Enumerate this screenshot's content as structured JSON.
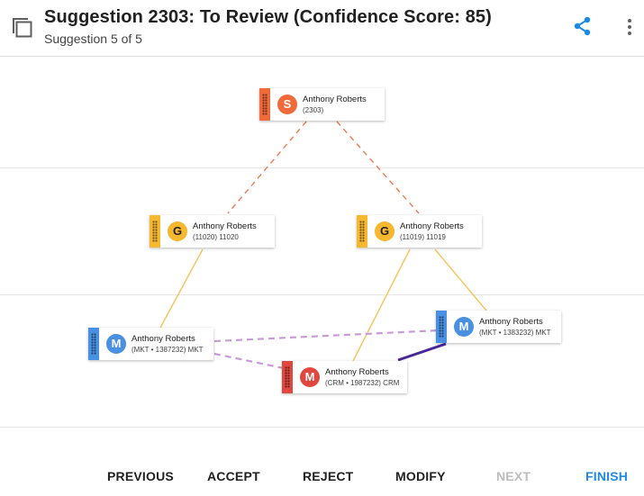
{
  "header": {
    "title": "Suggestion 2303: To Review (Confidence Score: 85)",
    "subtitle": "Suggestion 5 of 5",
    "icons": {
      "left": "copy-icon",
      "share": "share-icon",
      "more": "more-vertical-icon"
    }
  },
  "colors": {
    "orange": "#f06a3a",
    "yellow": "#f5b82e",
    "blue": "#4a90e2",
    "red": "#e0483f",
    "dashed_orange": "#f07a4f",
    "yellow_line": "#f5c45a",
    "lavender": "#c79bd6",
    "purple": "#4a2799",
    "accent": "#1e88e5"
  },
  "nodes": {
    "root": {
      "avatar": "S",
      "name": "Anthony Roberts",
      "sub": "(2303)"
    },
    "group_left": {
      "avatar": "G",
      "name": "Anthony Roberts",
      "sub": "(11020) 11020"
    },
    "group_right": {
      "avatar": "G",
      "name": "Anthony Roberts",
      "sub": "(11019) 11019"
    },
    "mkt_left": {
      "avatar": "M",
      "name": "Anthony Roberts",
      "sub": "(MKT • 1387232) MKT"
    },
    "mkt_right": {
      "avatar": "M",
      "name": "Anthony Roberts",
      "sub": "(MKT • 1383232) MKT"
    },
    "crm": {
      "avatar": "M",
      "name": "Anthony Roberts",
      "sub": "(CRM • 1987232) CRM"
    }
  },
  "footer": {
    "previous": "PREVIOUS",
    "accept": "ACCEPT",
    "reject": "REJECT",
    "modify": "MODIFY",
    "next": "NEXT",
    "finish": "FINISH"
  }
}
